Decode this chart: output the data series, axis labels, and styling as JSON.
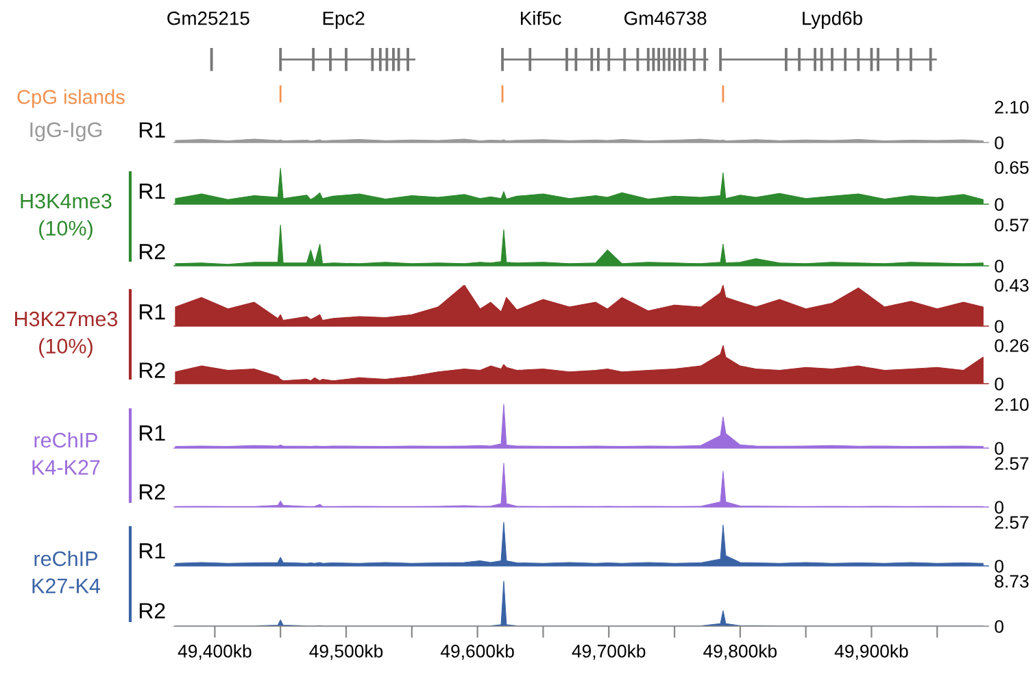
{
  "chart_data": [
    {
      "type": "other",
      "annotations": [
        "Gm25215",
        "Epc2",
        "Kif5c",
        "Gm46738",
        "Lypd6b"
      ]
    },
    {
      "type": "other",
      "title": "CpG islands",
      "color": "#f4914f"
    },
    {
      "type": "area",
      "title": "IgG-IgG",
      "ylabel": "R1",
      "color": "#999999",
      "xlim": [
        49369,
        49989
      ],
      "ylim": [
        0,
        2.1
      ],
      "yticks": [
        0,
        {
          "value": 2.1,
          "label": "2.10"
        }
      ],
      "tick_labels": "y",
      "x": [
        49370,
        49390,
        49410,
        49430,
        49448,
        49450,
        49452,
        49470,
        49473,
        49476,
        49480,
        49482,
        49490,
        49510,
        49530,
        49550,
        49570,
        49590,
        49602,
        49610,
        49618,
        49620,
        49622,
        49630,
        49650,
        49670,
        49690,
        49699,
        49710,
        49730,
        49750,
        49770,
        49785,
        49787,
        49789,
        49800,
        49812,
        49830,
        49850,
        49870,
        49890,
        49910,
        49930,
        49950,
        49970,
        49985
      ],
      "values": [
        0.12,
        0.18,
        0.1,
        0.2,
        0.12,
        0.15,
        0.1,
        0.14,
        0.1,
        0.12,
        0.16,
        0.1,
        0.13,
        0.18,
        0.11,
        0.15,
        0.12,
        0.2,
        0.1,
        0.14,
        0.12,
        0.16,
        0.1,
        0.13,
        0.17,
        0.11,
        0.15,
        0.12,
        0.18,
        0.1,
        0.14,
        0.2,
        0.12,
        0.15,
        0.1,
        0.13,
        0.17,
        0.11,
        0.15,
        0.12,
        0.18,
        0.1,
        0.14,
        0.12,
        0.16,
        0.1
      ]
    },
    {
      "type": "area",
      "title": "H3K4me3\n(10%)",
      "ylabel": "R1",
      "color": "#2e8a2e",
      "xlim": [
        49369,
        49989
      ],
      "ylim": [
        0,
        0.65
      ],
      "yticks": [
        0,
        0.65
      ],
      "tick_labels": "y",
      "x": [
        49370,
        49390,
        49410,
        49430,
        49448,
        49450,
        49452,
        49470,
        49473,
        49476,
        49480,
        49482,
        49490,
        49510,
        49530,
        49550,
        49570,
        49590,
        49602,
        49610,
        49618,
        49620,
        49622,
        49630,
        49650,
        49670,
        49690,
        49699,
        49710,
        49730,
        49750,
        49770,
        49785,
        49787,
        49789,
        49800,
        49812,
        49830,
        49850,
        49870,
        49890,
        49910,
        49930,
        49950,
        49970,
        49985
      ],
      "values": [
        0.1,
        0.18,
        0.08,
        0.15,
        0.12,
        0.63,
        0.1,
        0.16,
        0.08,
        0.12,
        0.2,
        0.1,
        0.14,
        0.18,
        0.09,
        0.15,
        0.12,
        0.17,
        0.1,
        0.13,
        0.1,
        0.22,
        0.09,
        0.14,
        0.18,
        0.1,
        0.15,
        0.12,
        0.2,
        0.09,
        0.14,
        0.12,
        0.15,
        0.55,
        0.1,
        0.16,
        0.12,
        0.19,
        0.1,
        0.14,
        0.18,
        0.09,
        0.15,
        0.12,
        0.17,
        0.08
      ]
    },
    {
      "type": "area",
      "ylabel": "R2",
      "color": "#2e8a2e",
      "xlim": [
        49369,
        49989
      ],
      "ylim": [
        0,
        0.57
      ],
      "yticks": [
        0,
        0.57
      ],
      "tick_labels": "y",
      "x": [
        49370,
        49390,
        49410,
        49430,
        49448,
        49450,
        49452,
        49470,
        49473,
        49476,
        49480,
        49482,
        49490,
        49510,
        49530,
        49550,
        49570,
        49590,
        49602,
        49610,
        49618,
        49620,
        49622,
        49630,
        49650,
        49670,
        49690,
        49699,
        49710,
        49730,
        49750,
        49770,
        49785,
        49787,
        49789,
        49800,
        49812,
        49830,
        49850,
        49870,
        49890,
        49910,
        49930,
        49950,
        49970,
        49985
      ],
      "values": [
        0.03,
        0.04,
        0.02,
        0.05,
        0.05,
        0.57,
        0.04,
        0.04,
        0.22,
        0.03,
        0.3,
        0.03,
        0.04,
        0.03,
        0.05,
        0.03,
        0.04,
        0.03,
        0.05,
        0.04,
        0.06,
        0.5,
        0.05,
        0.04,
        0.05,
        0.03,
        0.04,
        0.22,
        0.03,
        0.05,
        0.04,
        0.03,
        0.05,
        0.3,
        0.04,
        0.05,
        0.1,
        0.04,
        0.03,
        0.05,
        0.04,
        0.03,
        0.05,
        0.04,
        0.03,
        0.04
      ]
    },
    {
      "type": "area",
      "title": "H3K27me3\n(10%)",
      "ylabel": "R1",
      "color": "#a52a2a",
      "xlim": [
        49369,
        49989
      ],
      "ylim": [
        0,
        0.43
      ],
      "yticks": [
        0,
        0.43
      ],
      "tick_labels": "y",
      "x": [
        49370,
        49390,
        49410,
        49430,
        49448,
        49450,
        49452,
        49470,
        49473,
        49476,
        49480,
        49482,
        49490,
        49510,
        49530,
        49550,
        49570,
        49590,
        49602,
        49610,
        49618,
        49620,
        49622,
        49630,
        49650,
        49670,
        49690,
        49699,
        49710,
        49730,
        49750,
        49770,
        49785,
        49787,
        49789,
        49800,
        49812,
        49830,
        49850,
        49870,
        49890,
        49910,
        49930,
        49950,
        49970,
        49985
      ],
      "values": [
        0.2,
        0.3,
        0.18,
        0.25,
        0.08,
        0.12,
        0.06,
        0.1,
        0.07,
        0.09,
        0.12,
        0.06,
        0.08,
        0.1,
        0.09,
        0.12,
        0.2,
        0.43,
        0.18,
        0.25,
        0.15,
        0.22,
        0.3,
        0.17,
        0.28,
        0.2,
        0.25,
        0.18,
        0.3,
        0.16,
        0.22,
        0.2,
        0.35,
        0.43,
        0.3,
        0.25,
        0.2,
        0.28,
        0.18,
        0.24,
        0.4,
        0.2,
        0.26,
        0.18,
        0.25,
        0.2
      ]
    },
    {
      "type": "area",
      "ylabel": "R2",
      "color": "#a52a2a",
      "xlim": [
        49369,
        49989
      ],
      "ylim": [
        0,
        0.26
      ],
      "yticks": [
        0,
        0.26
      ],
      "tick_labels": "y",
      "x": [
        49370,
        49390,
        49410,
        49430,
        49448,
        49450,
        49452,
        49470,
        49473,
        49476,
        49480,
        49482,
        49490,
        49510,
        49530,
        49550,
        49570,
        49590,
        49602,
        49610,
        49618,
        49620,
        49622,
        49630,
        49650,
        49670,
        49690,
        49699,
        49710,
        49730,
        49750,
        49770,
        49785,
        49787,
        49789,
        49800,
        49812,
        49830,
        49850,
        49870,
        49890,
        49910,
        49930,
        49950,
        49970,
        49985
      ],
      "values": [
        0.08,
        0.12,
        0.09,
        0.1,
        0.05,
        0.03,
        0.02,
        0.03,
        0.02,
        0.04,
        0.02,
        0.03,
        0.02,
        0.04,
        0.03,
        0.05,
        0.08,
        0.1,
        0.09,
        0.12,
        0.1,
        0.13,
        0.11,
        0.09,
        0.1,
        0.08,
        0.09,
        0.1,
        0.08,
        0.09,
        0.1,
        0.12,
        0.2,
        0.26,
        0.18,
        0.12,
        0.1,
        0.09,
        0.11,
        0.1,
        0.12,
        0.09,
        0.1,
        0.11,
        0.09,
        0.18
      ]
    },
    {
      "type": "area",
      "title": "reChIP\nK4-K27",
      "ylabel": "R1",
      "color": "#9b6ddc",
      "xlim": [
        49369,
        49989
      ],
      "ylim": [
        0,
        2.1
      ],
      "yticks": [
        0,
        {
          "value": 2.1,
          "label": "2.10"
        }
      ],
      "tick_labels": "y",
      "x": [
        49370,
        49390,
        49410,
        49430,
        49448,
        49450,
        49452,
        49470,
        49473,
        49476,
        49480,
        49482,
        49490,
        49510,
        49530,
        49550,
        49570,
        49590,
        49602,
        49610,
        49618,
        49620,
        49622,
        49630,
        49650,
        49670,
        49690,
        49699,
        49710,
        49730,
        49750,
        49770,
        49785,
        49787,
        49789,
        49800,
        49812,
        49830,
        49850,
        49870,
        49890,
        49910,
        49930,
        49950,
        49970,
        49985
      ],
      "values": [
        0.08,
        0.1,
        0.08,
        0.12,
        0.1,
        0.15,
        0.1,
        0.09,
        0.08,
        0.1,
        0.09,
        0.08,
        0.1,
        0.09,
        0.08,
        0.1,
        0.09,
        0.1,
        0.12,
        0.1,
        0.2,
        2.1,
        0.15,
        0.1,
        0.09,
        0.08,
        0.1,
        0.09,
        0.08,
        0.1,
        0.09,
        0.12,
        0.6,
        1.5,
        0.7,
        0.15,
        0.1,
        0.09,
        0.1,
        0.12,
        0.09,
        0.1,
        0.08,
        0.09,
        0.1,
        0.08
      ]
    },
    {
      "type": "area",
      "ylabel": "R2",
      "color": "#9b6ddc",
      "xlim": [
        49369,
        49989
      ],
      "ylim": [
        0,
        2.57
      ],
      "yticks": [
        0,
        2.57
      ],
      "tick_labels": "y",
      "x": [
        49370,
        49390,
        49410,
        49430,
        49448,
        49450,
        49452,
        49470,
        49473,
        49476,
        49480,
        49482,
        49490,
        49510,
        49530,
        49550,
        49570,
        49590,
        49602,
        49610,
        49618,
        49620,
        49622,
        49630,
        49650,
        49670,
        49690,
        49699,
        49710,
        49730,
        49750,
        49770,
        49785,
        49787,
        49789,
        49800,
        49812,
        49830,
        49850,
        49870,
        49890,
        49910,
        49930,
        49950,
        49970,
        49985
      ],
      "values": [
        0.03,
        0.04,
        0.03,
        0.03,
        0.1,
        0.35,
        0.1,
        0.03,
        0.03,
        0.04,
        0.15,
        0.03,
        0.03,
        0.04,
        0.03,
        0.03,
        0.04,
        0.08,
        0.04,
        0.05,
        0.2,
        2.57,
        0.2,
        0.04,
        0.03,
        0.04,
        0.03,
        0.04,
        0.03,
        0.04,
        0.03,
        0.04,
        0.3,
        2.1,
        0.3,
        0.06,
        0.05,
        0.04,
        0.03,
        0.04,
        0.03,
        0.04,
        0.03,
        0.04,
        0.03,
        0.03
      ]
    },
    {
      "type": "area",
      "title": "reChIP\nK27-K4",
      "ylabel": "R1",
      "color": "#3a63a6",
      "xlim": [
        49369,
        49989
      ],
      "ylim": [
        0,
        2.57
      ],
      "yticks": [
        0,
        2.57
      ],
      "tick_labels": "y",
      "x": [
        49370,
        49390,
        49410,
        49430,
        49448,
        49450,
        49452,
        49470,
        49473,
        49476,
        49480,
        49482,
        49490,
        49510,
        49530,
        49550,
        49570,
        49590,
        49602,
        49610,
        49618,
        49620,
        49622,
        49630,
        49650,
        49670,
        49690,
        49699,
        49710,
        49730,
        49750,
        49770,
        49785,
        49787,
        49789,
        49800,
        49812,
        49830,
        49850,
        49870,
        49890,
        49910,
        49930,
        49950,
        49970,
        49985
      ],
      "values": [
        0.15,
        0.2,
        0.15,
        0.18,
        0.2,
        0.5,
        0.2,
        0.15,
        0.18,
        0.15,
        0.2,
        0.15,
        0.18,
        0.15,
        0.2,
        0.15,
        0.18,
        0.2,
        0.3,
        0.2,
        0.3,
        2.57,
        0.3,
        0.18,
        0.15,
        0.2,
        0.15,
        0.18,
        0.15,
        0.2,
        0.15,
        0.18,
        0.4,
        2.4,
        0.6,
        0.2,
        0.18,
        0.15,
        0.2,
        0.15,
        0.18,
        0.15,
        0.2,
        0.15,
        0.18,
        0.15
      ]
    },
    {
      "type": "area",
      "ylabel": "R2",
      "color": "#3a63a6",
      "xlim": [
        49369,
        49989
      ],
      "ylim": [
        0,
        8.73
      ],
      "yticks": [
        0,
        8.73
      ],
      "xticks": [
        {
          "value": 49400,
          "label": "49,400kb"
        },
        {
          "value": 49450,
          "label": null
        },
        {
          "value": 49500,
          "label": "49,500kb"
        },
        {
          "value": 49550,
          "label": null
        },
        {
          "value": 49600,
          "label": "49,600kb"
        },
        {
          "value": 49650,
          "label": null
        },
        {
          "value": 49700,
          "label": "49,700kb"
        },
        {
          "value": 49750,
          "label": null
        },
        {
          "value": 49800,
          "label": "49,800kb"
        },
        {
          "value": 49850,
          "label": null
        },
        {
          "value": 49900,
          "label": "49,900kb"
        },
        {
          "value": 49950,
          "label": null
        }
      ],
      "x": [
        49370,
        49390,
        49410,
        49430,
        49448,
        49450,
        49452,
        49470,
        49473,
        49476,
        49480,
        49482,
        49490,
        49510,
        49530,
        49550,
        49570,
        49590,
        49602,
        49610,
        49618,
        49620,
        49622,
        49630,
        49650,
        49670,
        49690,
        49699,
        49710,
        49730,
        49750,
        49770,
        49785,
        49787,
        49789,
        49800,
        49812,
        49830,
        49850,
        49870,
        49890,
        49910,
        49930,
        49950,
        49970,
        49985
      ],
      "values": [
        0.05,
        0.05,
        0.05,
        0.05,
        0.2,
        1.2,
        0.2,
        0.05,
        0.05,
        0.05,
        0.1,
        0.05,
        0.05,
        0.05,
        0.05,
        0.05,
        0.05,
        0.05,
        0.05,
        0.05,
        0.3,
        8.73,
        0.3,
        0.05,
        0.05,
        0.05,
        0.05,
        0.05,
        0.05,
        0.05,
        0.05,
        0.05,
        0.5,
        3.0,
        0.5,
        0.1,
        0.1,
        0.05,
        0.05,
        0.05,
        0.05,
        0.05,
        0.05,
        0.05,
        0.05,
        0.05
      ]
    }
  ]
}
